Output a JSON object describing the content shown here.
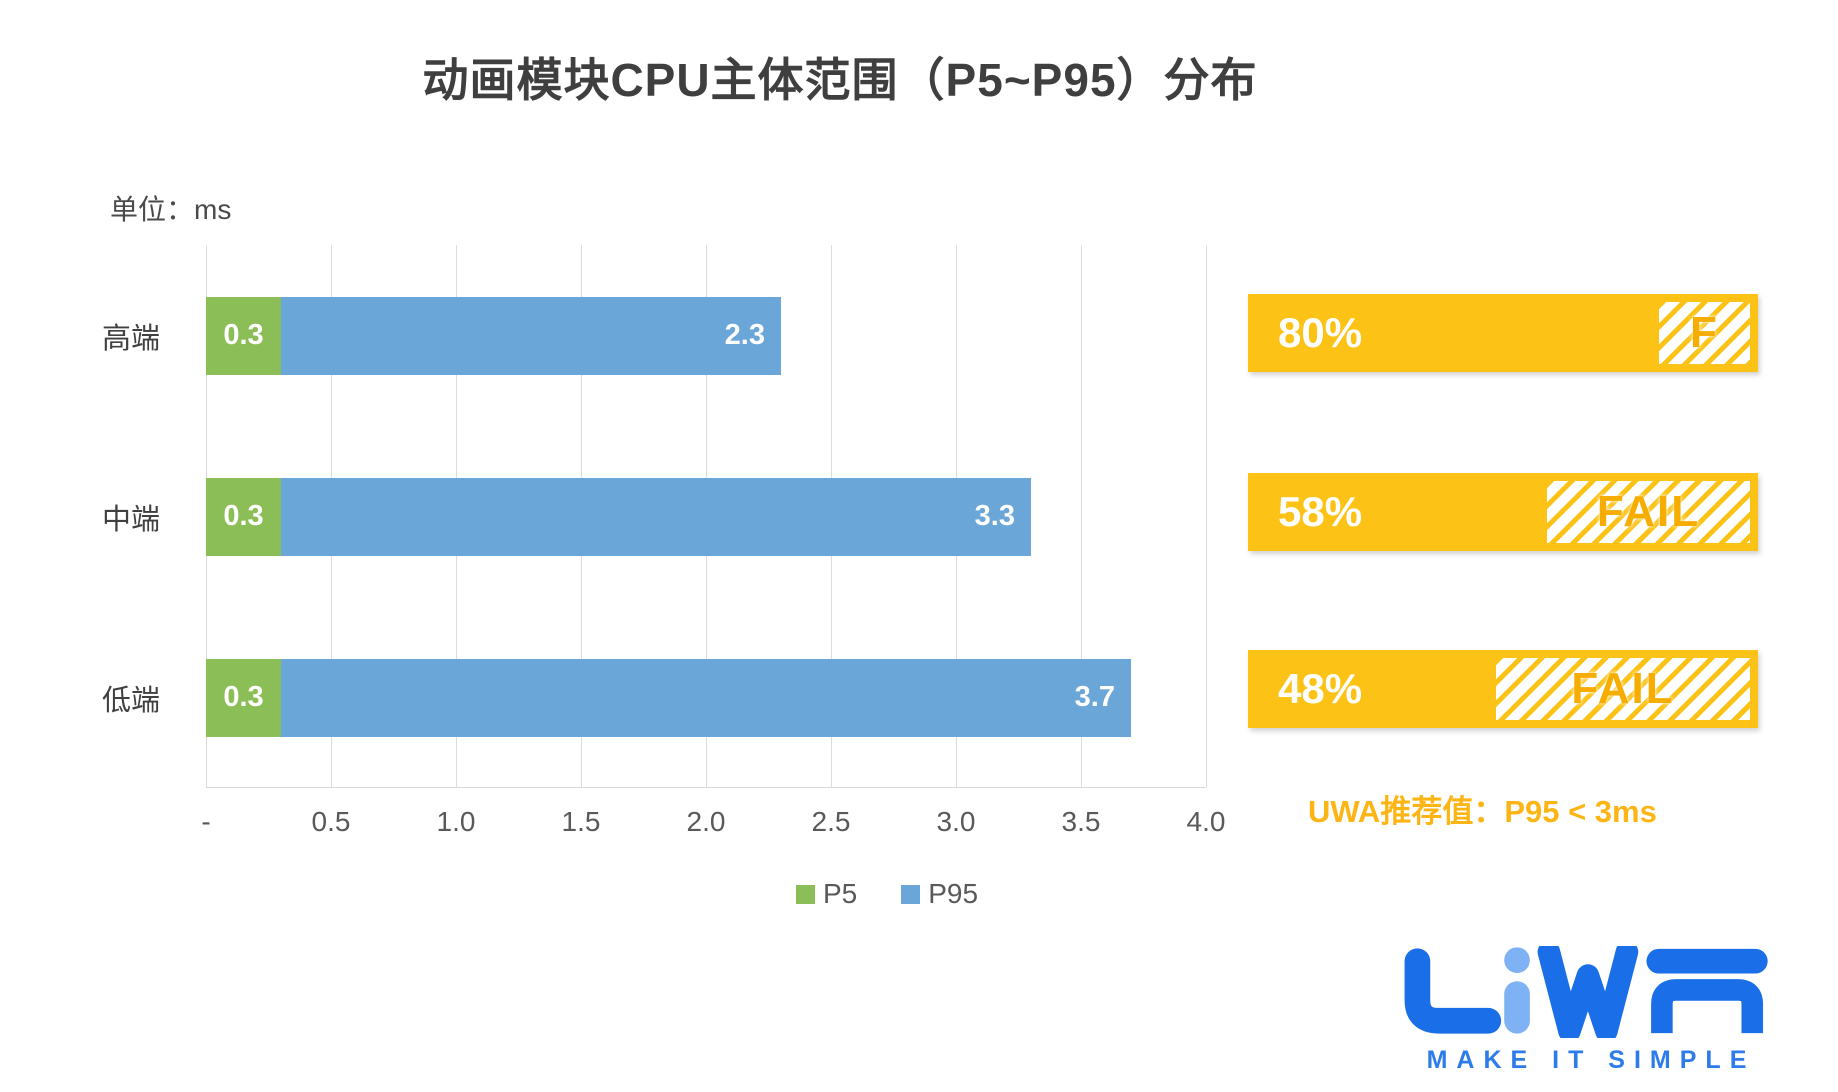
{
  "title": "动画模块CPU主体范围（P5~P95）分布",
  "unit_label": "单位：ms",
  "chart_data": {
    "type": "bar",
    "orientation": "horizontal",
    "title": "动画模块CPU主体范围（P5~P95）分布",
    "unit": "ms",
    "categories": [
      "高端",
      "中端",
      "低端"
    ],
    "series": [
      {
        "name": "P5",
        "color": "#8cbe58",
        "values": [
          0.3,
          0.3,
          0.3
        ]
      },
      {
        "name": "P95",
        "color": "#6ba6d9",
        "values": [
          2.3,
          3.3,
          3.7
        ]
      }
    ],
    "bar_style": "range (P5 start segment, P95 end of bar)",
    "xlim": [
      0,
      4
    ],
    "xticks": [
      "-",
      "0.5",
      "1.0",
      "1.5",
      "2.0",
      "2.5",
      "3.0",
      "3.5",
      "4.0"
    ],
    "grid": "vertical",
    "legend_position": "bottom",
    "value_labels": {
      "p5": [
        "0.3",
        "0.3",
        "0.3"
      ],
      "p95": [
        "2.3",
        "3.3",
        "3.7"
      ]
    }
  },
  "badges": [
    {
      "percent_label": "80%",
      "percent_value": 80,
      "grade": "F"
    },
    {
      "percent_label": "58%",
      "percent_value": 58,
      "grade": "FAIL"
    },
    {
      "percent_label": "48%",
      "percent_value": 48,
      "grade": "FAIL"
    }
  ],
  "recommendation": "UWA推荐值：P95 < 3ms",
  "legend": [
    {
      "label": "P5",
      "color": "#8cbe58"
    },
    {
      "label": "P95",
      "color": "#6ba6d9"
    }
  ],
  "logo": {
    "brand": "UWA",
    "tagline": "MAKE IT SIMPLE"
  },
  "colors": {
    "p5_green": "#8cbe58",
    "p95_blue": "#6ba6d9",
    "badge_yellow": "#fcc316",
    "grade_orange": "#f7ac00",
    "recommendation_orange": "#fdb515",
    "title_gray": "#3f3f3f",
    "axis_gray": "#595959",
    "gridline_gray": "#dcdcdc",
    "logo_blue_dark": "#1a6fe8",
    "logo_blue_light": "#7fb2f4"
  }
}
